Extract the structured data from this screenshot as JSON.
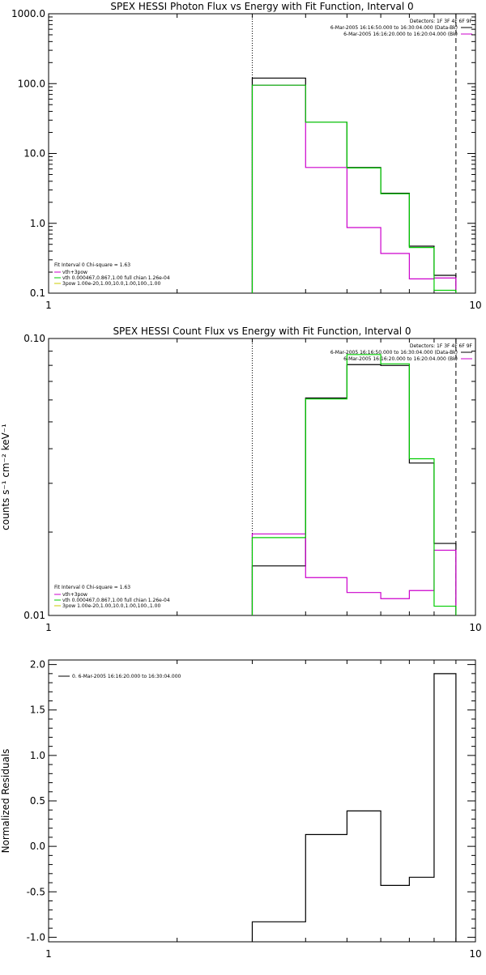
{
  "chart_data": [
    {
      "type": "line",
      "title": "SPEX HESSI Photon Flux vs Energy with Fit Function, Interval 0",
      "xlabel": "",
      "ylabel": "",
      "xscale": "log",
      "yscale": "log",
      "xlim": [
        1,
        10
      ],
      "ylim": [
        0.1,
        1000
      ],
      "xticks": [
        "1",
        "10"
      ],
      "yticks": [
        "0.1",
        "1.0",
        "10.0",
        "100.0",
        "1000.0"
      ],
      "bin_edges": [
        3,
        4,
        5,
        6,
        7,
        8,
        9
      ],
      "series": [
        {
          "color": "#000000",
          "values": [
            120,
            28,
            6.3,
            2.7,
            0.47,
            0.18
          ]
        },
        {
          "color": "#cc00cc",
          "values": [
            95,
            6.3,
            0.87,
            0.37,
            0.16,
            0.165
          ]
        },
        {
          "color": "#00cc00",
          "values": [
            95,
            28,
            6.2,
            2.65,
            0.45,
            0.11
          ]
        }
      ],
      "vlines": [
        {
          "x": 3,
          "style": "dotted"
        },
        {
          "x": 9,
          "style": "dashed"
        }
      ],
      "legend_top_right": {
        "header": "Detectors: 1F 3F 4F 6F 9F",
        "entries": [
          {
            "text": "6-Mar-2005 16:16:50.000 to 16:30:04.000 (Data-Bk)",
            "color": "#000000"
          },
          {
            "text": "6-Mar-2005 16:16:20.000 to 16:20:04.000 (Bk)",
            "color": "#cc00cc"
          }
        ]
      },
      "legend_bottom_left": {
        "header": "Fit Interval 0   Chi-square = 1.63",
        "entries": [
          {
            "text": "vth+3pow",
            "color": "#cc00cc"
          },
          {
            "text": "vth 0.000467,0.867,1.00  full chian 1.26e-04",
            "color": "#00cc00"
          },
          {
            "text": "3pow 1.00e-20,1.00,10.0,1.00,100.,1.00",
            "color": "#cccc00"
          }
        ]
      }
    },
    {
      "type": "line",
      "title": "SPEX HESSI Count Flux vs Energy with Fit Function, Interval 0",
      "xlabel": "",
      "ylabel": "counts s⁻¹ cm⁻² keV⁻¹",
      "xscale": "log",
      "yscale": "log",
      "xlim": [
        1,
        10
      ],
      "ylim": [
        0.01,
        0.1
      ],
      "xticks": [
        "1",
        "10"
      ],
      "yticks": [
        "0.01",
        "0.10"
      ],
      "bin_edges": [
        3,
        4,
        5,
        6,
        7,
        8,
        9
      ],
      "series": [
        {
          "color": "#000000",
          "values": [
            0.0151,
            0.061,
            0.0805,
            0.0799,
            0.0355,
            0.0182
          ]
        },
        {
          "color": "#cc00cc",
          "values": [
            0.0197,
            0.0137,
            0.0121,
            0.0115,
            0.0123,
            0.0172
          ]
        },
        {
          "color": "#00cc00",
          "values": [
            0.0191,
            0.0605,
            0.0875,
            0.081,
            0.0368,
            0.0108
          ]
        }
      ],
      "vlines": [
        {
          "x": 3,
          "style": "dotted"
        },
        {
          "x": 9,
          "style": "dashed"
        }
      ],
      "legend_top_right": {
        "header": "Detectors: 1F 3F 4F 6F 9F",
        "entries": [
          {
            "text": "6-Mar-2005 16:16:50.000 to 16:30:04.000 (Data-Bk)",
            "color": "#000000"
          },
          {
            "text": "6-Mar-2005 16:16:20.000 to 16:20:04.000 (Bk)",
            "color": "#cc00cc"
          }
        ]
      },
      "legend_bottom_left": {
        "header": "Fit Interval 0   Chi-square = 1.63",
        "entries": [
          {
            "text": "vth+3pow",
            "color": "#cc00cc"
          },
          {
            "text": "vth 0.000467,0.867,1.00  full chian 1.26e-04",
            "color": "#00cc00"
          },
          {
            "text": "3pow 1.00e-20,1.00,10.0,1.00,100.,1.00",
            "color": "#cccc00"
          }
        ]
      }
    },
    {
      "type": "line",
      "title": "",
      "xlabel": "",
      "ylabel": "Normalized Residuals",
      "xscale": "log",
      "yscale": "linear",
      "xlim": [
        1,
        10
      ],
      "ylim": [
        -1.05,
        2.05
      ],
      "xticks": [
        "1",
        "10"
      ],
      "yticks": [
        "-1.0",
        "-0.5",
        "0.0",
        "0.5",
        "1.0",
        "1.5",
        "2.0"
      ],
      "bin_edges": [
        3,
        4,
        5,
        6,
        7,
        8,
        9
      ],
      "series": [
        {
          "color": "#000000",
          "values": [
            -0.83,
            0.13,
            0.39,
            -0.43,
            -0.34,
            1.9
          ]
        }
      ],
      "legend_top_left": {
        "entries": [
          {
            "text": "0.  6-Mar-2005 16:16:20.000 to 16:30:04.000",
            "color": "#000000"
          }
        ]
      }
    }
  ]
}
